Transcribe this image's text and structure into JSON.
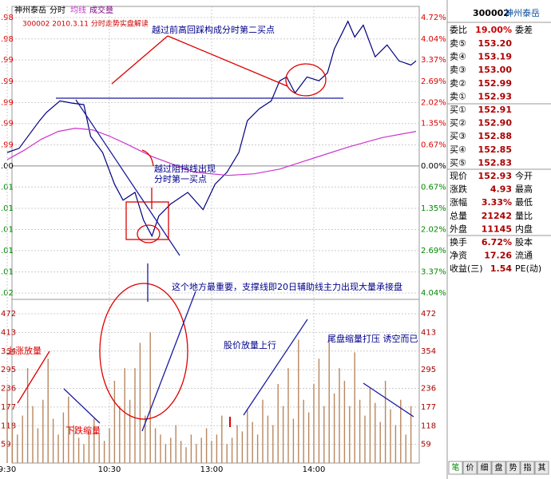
{
  "header": {
    "name": "神州泰岳",
    "tab_time": "分时",
    "tab_avg": "均线",
    "tab_vol": "成交量",
    "subtitle": "300002 2010.3.11 分时走势实盘解读"
  },
  "chart_data": [
    {
      "type": "line",
      "ylim": [
        -4.04,
        4.72
      ],
      "yticks": [
        {
          "value": 4.72,
          "label": "4.72%"
        },
        {
          "value": 4.04,
          "label": "4.04%"
        },
        {
          "value": 3.37,
          "label": "3.37%"
        },
        {
          "value": 2.69,
          "label": "2.69%"
        },
        {
          "value": 2.02,
          "label": "2.02%"
        },
        {
          "value": 1.35,
          "label": "1.35%"
        },
        {
          "value": 0.67,
          "label": "0.67%"
        },
        {
          "value": 0,
          "label": "0.00%"
        },
        {
          "value": -0.67,
          "label": "0.67%"
        },
        {
          "value": -1.35,
          "label": "1.35%"
        },
        {
          "value": -2.02,
          "label": "2.02%"
        },
        {
          "value": -2.69,
          "label": "2.69%"
        },
        {
          "value": -3.37,
          "label": "3.37%"
        },
        {
          "value": -4.04,
          "label": "4.04%"
        }
      ],
      "price_labels": [
        ".98",
        ".98",
        ".99",
        ".99",
        ".99",
        ".99",
        ".99",
        ".00",
        ".01",
        ".01",
        ".01",
        ".01",
        ".01",
        ".02"
      ],
      "xlim": [
        0,
        240
      ],
      "series": [
        {
          "name": "分时",
          "color": "#000080",
          "x": [
            0,
            7,
            19,
            23,
            31,
            38,
            45,
            49,
            56,
            63,
            68,
            75,
            80,
            85,
            89,
            96,
            106,
            115,
            122,
            129,
            136,
            141,
            148,
            155,
            160,
            164,
            169,
            176,
            183,
            188,
            192,
            200,
            204,
            209,
            216,
            223,
            230,
            237,
            240
          ],
          "values": [
            0.43,
            0.56,
            1.44,
            1.7,
            2.07,
            2.0,
            1.95,
            0.94,
            0.43,
            -0.58,
            -1.09,
            -0.84,
            -1.72,
            -2.23,
            -1.59,
            -1.21,
            -0.84,
            -1.39,
            -0.58,
            -0.2,
            0.43,
            1.44,
            1.82,
            2.07,
            2.71,
            2.83,
            2.32,
            2.83,
            2.71,
            2.96,
            3.72,
            4.6,
            4.1,
            4.48,
            3.47,
            3.85,
            3.34,
            3.21,
            3.34
          ]
        },
        {
          "name": "均线",
          "color": "#cc33cc",
          "x": [
            0,
            10,
            20,
            30,
            40,
            50,
            60,
            70,
            85,
            100,
            110,
            130,
            145,
            160,
            180,
            200,
            220,
            240
          ],
          "values": [
            0.2,
            0.5,
            0.85,
            1.1,
            1.2,
            1.15,
            0.95,
            0.7,
            0.3,
            0.0,
            -0.2,
            -0.3,
            -0.25,
            -0.1,
            0.25,
            0.6,
            0.9,
            1.1
          ]
        }
      ]
    },
    {
      "type": "bar",
      "color": "#b8875f",
      "ylim": [
        0,
        472
      ],
      "yticks": [
        472,
        413,
        354,
        295,
        236,
        177,
        118,
        59
      ],
      "xlim": [
        0,
        240
      ],
      "xticks": [
        {
          "value": 0,
          "label": "9:30"
        },
        {
          "value": 60,
          "label": "10:30"
        },
        {
          "value": 120,
          "label": "13:00"
        },
        {
          "value": 180,
          "label": "14:00"
        }
      ],
      "x": [
        0,
        3,
        6,
        9,
        12,
        15,
        18,
        21,
        24,
        27,
        30,
        33,
        36,
        39,
        42,
        45,
        48,
        51,
        54,
        57,
        60,
        63,
        66,
        69,
        72,
        75,
        78,
        81,
        84,
        87,
        90,
        93,
        96,
        99,
        102,
        105,
        108,
        111,
        114,
        117,
        120,
        123,
        126,
        129,
        132,
        135,
        138,
        141,
        144,
        147,
        150,
        153,
        156,
        159,
        162,
        165,
        168,
        171,
        174,
        177,
        180,
        183,
        186,
        189,
        192,
        195,
        198,
        201,
        204,
        207,
        210,
        213,
        216,
        219,
        222,
        225,
        228,
        231,
        234,
        237
      ],
      "values": [
        236,
        120,
        90,
        150,
        300,
        180,
        110,
        200,
        330,
        140,
        90,
        160,
        210,
        120,
        80,
        60,
        100,
        140,
        90,
        70,
        110,
        260,
        180,
        300,
        200,
        300,
        380,
        150,
        413,
        110,
        90,
        60,
        80,
        120,
        70,
        50,
        90,
        60,
        80,
        110,
        70,
        90,
        150,
        60,
        80,
        120,
        100,
        170,
        130,
        90,
        200,
        150,
        120,
        250,
        180,
        300,
        140,
        390,
        200,
        160,
        250,
        330,
        180,
        400,
        220,
        300,
        260,
        180,
        350,
        200,
        150,
        240,
        190,
        130,
        260,
        170,
        120,
        200,
        90,
        180
      ]
    }
  ],
  "annotations": {
    "second_buy": "越过前高回踩构成分时第二买点",
    "first_buy_1": "越过阻挡线出现",
    "first_buy_2": "分时第一买点",
    "support": "这个地方最重要，支撑线即20日辅助线主力出现大量承接盘",
    "up_vol": "股价放量上行",
    "tail": "尾盘缩量打压  诱空而已",
    "rise_vol": "上涨放量",
    "fall_vol": "下跌缩量"
  },
  "quote": {
    "code": "300002",
    "name": "神州泰岳",
    "ratio_label": "委比",
    "ratio": "19.00%",
    "diff_label": "委差",
    "asks": [
      {
        "label": "卖⑤",
        "price": "153.20"
      },
      {
        "label": "卖④",
        "price": "153.19"
      },
      {
        "label": "卖③",
        "price": "153.00"
      },
      {
        "label": "卖②",
        "price": "152.99"
      },
      {
        "label": "卖①",
        "price": "152.93"
      }
    ],
    "bids": [
      {
        "label": "买①",
        "price": "152.91"
      },
      {
        "label": "买②",
        "price": "152.90"
      },
      {
        "label": "买③",
        "price": "152.88"
      },
      {
        "label": "买④",
        "price": "152.85"
      },
      {
        "label": "买⑤",
        "price": "152.83"
      }
    ],
    "stats": [
      {
        "label": "现价",
        "value": "152.93",
        "label2": "今开"
      },
      {
        "label": "涨跌",
        "value": "4.93",
        "label2": "最高"
      },
      {
        "label": "涨幅",
        "value": "3.33%",
        "label2": "最低"
      },
      {
        "label": "总量",
        "value": "21242",
        "label2": "量比"
      },
      {
        "label": "外盘",
        "value": "11145",
        "label2": "内盘"
      }
    ],
    "stats2": [
      {
        "label": "换手",
        "value": "6.72%",
        "label2": "股本"
      },
      {
        "label": "净资",
        "value": "17.26",
        "label2": "流通"
      },
      {
        "label": "收益(三)",
        "value": "1.54",
        "label2": "PE(动)"
      }
    ],
    "tabs": [
      "笔",
      "价",
      "细",
      "盘",
      "势",
      "指",
      "其"
    ]
  }
}
